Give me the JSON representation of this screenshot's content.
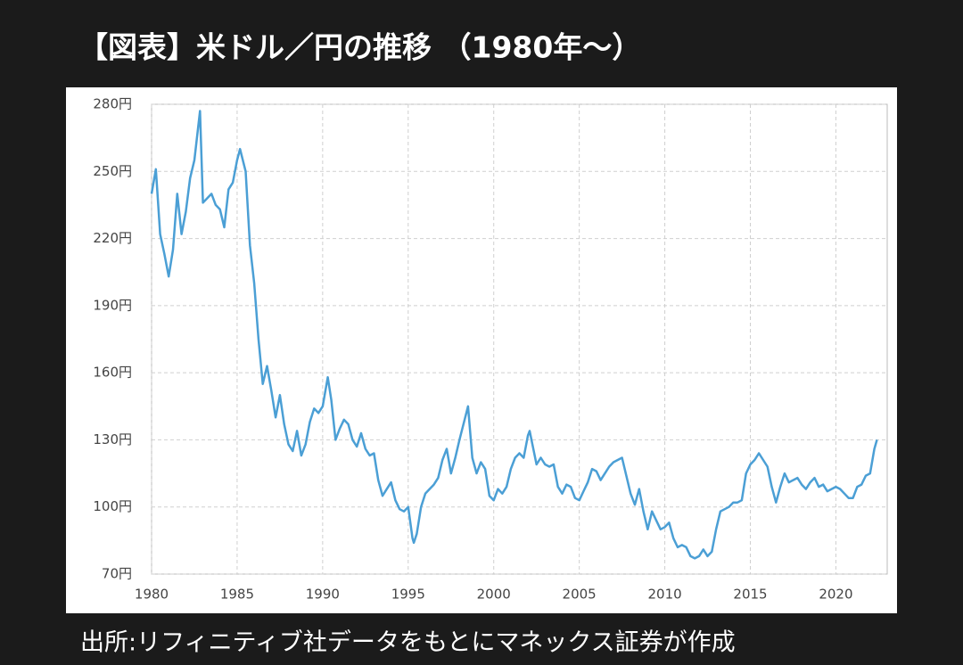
{
  "chart_data": {
    "type": "line",
    "title": "【図表】米ドル／円の推移 （1980年〜）",
    "source": "出所:リフィニティブ社データをもとにマネックス証券が作成",
    "x": [
      1980.0,
      1980.25,
      1980.5,
      1980.75,
      1981.0,
      1981.25,
      1981.5,
      1981.75,
      1982.0,
      1982.25,
      1982.5,
      1982.83,
      1983.0,
      1983.25,
      1983.5,
      1983.75,
      1984.0,
      1984.25,
      1984.5,
      1984.75,
      1985.0,
      1985.17,
      1985.5,
      1985.75,
      1986.0,
      1986.25,
      1986.5,
      1986.75,
      1987.0,
      1987.25,
      1987.5,
      1987.75,
      1988.0,
      1988.25,
      1988.5,
      1988.75,
      1989.0,
      1989.25,
      1989.5,
      1989.75,
      1990.0,
      1990.3,
      1990.5,
      1990.75,
      1991.0,
      1991.25,
      1991.5,
      1991.75,
      1992.0,
      1992.25,
      1992.5,
      1992.75,
      1993.0,
      1993.25,
      1993.5,
      1993.75,
      1994.0,
      1994.25,
      1994.5,
      1994.75,
      1995.0,
      1995.25,
      1995.33,
      1995.5,
      1995.75,
      1996.0,
      1996.25,
      1996.5,
      1996.75,
      1997.0,
      1997.25,
      1997.5,
      1997.75,
      1998.0,
      1998.5,
      1998.75,
      1999.0,
      1999.25,
      1999.5,
      1999.75,
      2000.0,
      2000.25,
      2000.5,
      2000.75,
      2001.0,
      2001.25,
      2001.5,
      2001.75,
      2002.0,
      2002.1,
      2002.5,
      2002.75,
      2003.0,
      2003.25,
      2003.5,
      2003.75,
      2004.0,
      2004.25,
      2004.5,
      2004.75,
      2005.0,
      2005.25,
      2005.5,
      2005.75,
      2006.0,
      2006.25,
      2006.5,
      2006.75,
      2007.0,
      2007.5,
      2007.75,
      2008.0,
      2008.25,
      2008.5,
      2008.75,
      2009.0,
      2009.25,
      2009.5,
      2009.75,
      2010.0,
      2010.25,
      2010.5,
      2010.75,
      2011.0,
      2011.25,
      2011.5,
      2011.75,
      2012.0,
      2012.25,
      2012.5,
      2012.75,
      2013.0,
      2013.25,
      2013.5,
      2013.75,
      2014.0,
      2014.25,
      2014.5,
      2014.75,
      2015.0,
      2015.25,
      2015.5,
      2015.75,
      2016.0,
      2016.25,
      2016.5,
      2016.75,
      2017.0,
      2017.25,
      2017.5,
      2017.75,
      2018.0,
      2018.25,
      2018.5,
      2018.75,
      2019.0,
      2019.25,
      2019.5,
      2019.75,
      2020.0,
      2020.25,
      2020.5,
      2020.75,
      2021.0,
      2021.25,
      2021.5,
      2021.75,
      2022.0,
      2022.25,
      2022.4
    ],
    "values": [
      240,
      251,
      222,
      213,
      203,
      215,
      240,
      222,
      232,
      247,
      255,
      277,
      236,
      238,
      240,
      235,
      233,
      225,
      242,
      245,
      255,
      260,
      250,
      217,
      200,
      175,
      155,
      163,
      152,
      140,
      150,
      137,
      128,
      125,
      134,
      123,
      128,
      138,
      144,
      142,
      145,
      158,
      148,
      130,
      135,
      139,
      137,
      130,
      127,
      133,
      126,
      123,
      124,
      112,
      105,
      108,
      111,
      103,
      99,
      98,
      100,
      86,
      84,
      88,
      100,
      106,
      108,
      110,
      113,
      121,
      126,
      115,
      122,
      130,
      145,
      122,
      115,
      120,
      117,
      105,
      103,
      108,
      106,
      109,
      117,
      122,
      124,
      122,
      132,
      134,
      119,
      122,
      119,
      118,
      119,
      109,
      106,
      110,
      109,
      104,
      103,
      107,
      111,
      117,
      116,
      112,
      115,
      118,
      120,
      122,
      114,
      106,
      101,
      108,
      98,
      90,
      98,
      94,
      90,
      91,
      93,
      86,
      82,
      83,
      82,
      78,
      77,
      78,
      81,
      78,
      80,
      90,
      98,
      99,
      100,
      102,
      102,
      103,
      115,
      119,
      121,
      124,
      121,
      118,
      109,
      102,
      109,
      115,
      111,
      112,
      113,
      110,
      108,
      111,
      113,
      109,
      110,
      107,
      108,
      109,
      108,
      106,
      104,
      104,
      109,
      110,
      114,
      115,
      126,
      130
    ],
    "color": "#4b9fd5",
    "xlim": [
      1980,
      2023
    ],
    "ylim": [
      70,
      280
    ],
    "xticks": [
      1980,
      1985,
      1990,
      1995,
      2000,
      2005,
      2010,
      2015,
      2020
    ],
    "yticks": [
      {
        "value": 70,
        "label": "70円"
      },
      {
        "value": 100,
        "label": "100円"
      },
      {
        "value": 130,
        "label": "130円"
      },
      {
        "value": 160,
        "label": "160円"
      },
      {
        "value": 190,
        "label": "190円"
      },
      {
        "value": 220,
        "label": "220円"
      },
      {
        "value": 250,
        "label": "250円"
      },
      {
        "value": 280,
        "label": "280円"
      }
    ],
    "grid": true
  }
}
